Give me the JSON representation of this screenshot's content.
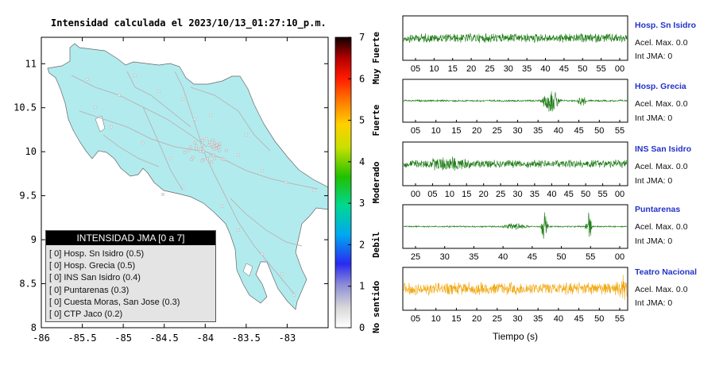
{
  "title": "Intensidad calculada el 2023/10/13_01:27:10_p.m.",
  "map": {
    "x_ticks": [
      "-86",
      "-85.5",
      "-85",
      "-84.5",
      "-84",
      "-83.5",
      "-83"
    ],
    "y_ticks": [
      "11",
      "10.5",
      "10",
      "9.5",
      "9",
      "8.5",
      "8"
    ],
    "land_color": "#b2ebee",
    "road_color": "#b8b8b8"
  },
  "colorbar": {
    "ticks": [
      "0",
      "1",
      "2",
      "3",
      "4",
      "5",
      "6",
      "7"
    ],
    "labels": [
      "No sentido",
      "Debil",
      "Moderado",
      "Fuerte",
      "Muy Fuerte"
    ]
  },
  "legend": {
    "header": "INTENSIDAD JMA [0 a 7]",
    "items": [
      "[ 0]  Hosp. Sn Isidro (0.5)",
      "[ 0]  Hosp. Grecia (0.5)",
      "[ 0]  INS San Isidro (0.4)",
      "[ 0]  Puntarenas (0.3)",
      "[ 0]  Cuesta Moras, San Jose (0.3)",
      "[ 0]  CTP Jaco (0.2)"
    ]
  },
  "chart_data": [
    {
      "type": "table",
      "title": "Intensidad calculada el 2023/10/13_01:27:10_p.m.",
      "columns": [
        "intensidad_jma",
        "estacion",
        "valor"
      ],
      "rows": [
        [
          0,
          "Hosp. Sn Isidro",
          0.5
        ],
        [
          0,
          "Hosp. Grecia",
          0.5
        ],
        [
          0,
          "INS San Isidro",
          0.4
        ],
        [
          0,
          "Puntarenas",
          0.3
        ],
        [
          0,
          "Cuesta Moras, San Jose",
          0.3
        ],
        [
          0,
          "CTP Jaco",
          0.2
        ]
      ],
      "x_range": [
        -86,
        -82.5
      ],
      "y_range": [
        8,
        11.3
      ],
      "colorbar_range": [
        0,
        7
      ]
    },
    {
      "type": "line",
      "xlabel": "Tiempo (s)",
      "series": [
        {
          "name": "Hosp. Sn Isidro",
          "x_ticks": [
            "05",
            "10",
            "15",
            "20",
            "25",
            "30",
            "35",
            "40",
            "45",
            "50",
            "55",
            "00"
          ],
          "accel_max_label": "Acel. Max. 0.0",
          "int_jma_label": "Int JMA: 0",
          "color": "#1a7a12"
        },
        {
          "name": "Hosp. Grecia",
          "x_ticks": [
            "05",
            "10",
            "15",
            "20",
            "25",
            "30",
            "35",
            "40",
            "45",
            "50",
            "55"
          ],
          "accel_max_label": "Acel. Max. 0.0",
          "int_jma_label": "Int JMA: 0",
          "color": "#1a7a12"
        },
        {
          "name": "INS San Isidro",
          "x_ticks": [
            "00",
            "05",
            "10",
            "15",
            "20",
            "25",
            "30",
            "35",
            "40",
            "45",
            "50",
            "55",
            "00"
          ],
          "accel_max_label": "Acel. Max. 0.0",
          "int_jma_label": "Int JMA: 0",
          "color": "#1a7a12"
        },
        {
          "name": "Puntarenas",
          "x_ticks": [
            "25",
            "30",
            "35",
            "40",
            "45",
            "50",
            "55",
            "00"
          ],
          "accel_max_label": "Acel. Max. 0.0",
          "int_jma_label": "Int JMA: 0",
          "color": "#1a7a12"
        },
        {
          "name": "Teatro Nacional",
          "x_ticks": [
            "05",
            "10",
            "15",
            "20",
            "25",
            "30",
            "35",
            "40",
            "45",
            "50",
            "55"
          ],
          "accel_max_label": "Acel. Max. 0.0",
          "int_jma_label": "Int JMA: 0",
          "color": "#f2a60c"
        }
      ]
    }
  ]
}
